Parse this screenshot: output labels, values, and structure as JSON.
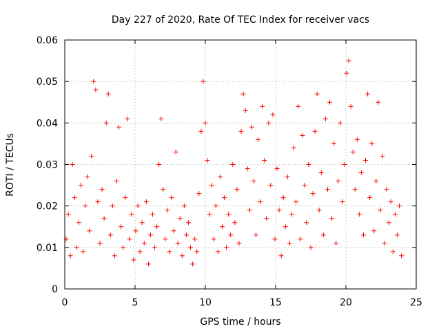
{
  "chart_data": {
    "type": "scatter",
    "title": "Day 227 of 2020, Rate Of TEC Index for receiver vacs",
    "xlabel": "GPS time / hours",
    "ylabel": "ROTI / TECUs",
    "xlim": [
      0,
      25
    ],
    "ylim": [
      0,
      0.06
    ],
    "xticks": [
      0,
      5,
      10,
      15,
      20,
      25
    ],
    "xtick_labels": [
      "0",
      "5",
      "10",
      "15",
      "20",
      "25"
    ],
    "yticks": [
      0,
      0.01,
      0.02,
      0.03,
      0.04,
      0.05,
      0.06
    ],
    "ytick_labels": [
      "0",
      "0.01",
      "0.02",
      "0.03",
      "0.04",
      "0.05",
      "0.06"
    ],
    "grid": true,
    "marker": "plus",
    "color": "#ff0000",
    "series": [
      {
        "points": [
          [
            0.1,
            0.012
          ],
          [
            0.25,
            0.018
          ],
          [
            0.4,
            0.008
          ],
          [
            0.55,
            0.03
          ],
          [
            0.7,
            0.022
          ],
          [
            0.85,
            0.01
          ],
          [
            1.0,
            0.016
          ],
          [
            1.15,
            0.025
          ],
          [
            1.3,
            0.009
          ],
          [
            1.45,
            0.02
          ],
          [
            1.6,
            0.027
          ],
          [
            1.75,
            0.014
          ],
          [
            1.9,
            0.032
          ],
          [
            2.05,
            0.05
          ],
          [
            2.2,
            0.048
          ],
          [
            2.35,
            0.021
          ],
          [
            2.5,
            0.011
          ],
          [
            2.65,
            0.024
          ],
          [
            2.8,
            0.017
          ],
          [
            2.95,
            0.04
          ],
          [
            3.1,
            0.047
          ],
          [
            3.25,
            0.013
          ],
          [
            3.4,
            0.02
          ],
          [
            3.55,
            0.008
          ],
          [
            3.7,
            0.026
          ],
          [
            3.85,
            0.039
          ],
          [
            4.0,
            0.015
          ],
          [
            4.15,
            0.01
          ],
          [
            4.3,
            0.022
          ],
          [
            4.45,
            0.041
          ],
          [
            4.6,
            0.012
          ],
          [
            4.75,
            0.018
          ],
          [
            4.9,
            0.007
          ],
          [
            5.05,
            0.014
          ],
          [
            5.2,
            0.02
          ],
          [
            5.35,
            0.009
          ],
          [
            5.5,
            0.016
          ],
          [
            5.65,
            0.011
          ],
          [
            5.8,
            0.021
          ],
          [
            5.95,
            0.006
          ],
          [
            6.1,
            0.013
          ],
          [
            6.25,
            0.018
          ],
          [
            6.4,
            0.01
          ],
          [
            6.55,
            0.015
          ],
          [
            6.7,
            0.03
          ],
          [
            6.85,
            0.041
          ],
          [
            7.0,
            0.024
          ],
          [
            7.15,
            0.012
          ],
          [
            7.3,
            0.019
          ],
          [
            7.45,
            0.009
          ],
          [
            7.6,
            0.022
          ],
          [
            7.75,
            0.014
          ],
          [
            7.9,
            0.033
          ],
          [
            8.05,
            0.011
          ],
          [
            8.2,
            0.017
          ],
          [
            8.35,
            0.008
          ],
          [
            8.5,
            0.02
          ],
          [
            8.65,
            0.013
          ],
          [
            8.8,
            0.016
          ],
          [
            8.95,
            0.01
          ],
          [
            9.1,
            0.006
          ],
          [
            9.25,
            0.012
          ],
          [
            9.4,
            0.009
          ],
          [
            9.55,
            0.023
          ],
          [
            9.7,
            0.038
          ],
          [
            9.85,
            0.05
          ],
          [
            10.0,
            0.04
          ],
          [
            10.15,
            0.031
          ],
          [
            10.3,
            0.018
          ],
          [
            10.45,
            0.025
          ],
          [
            10.6,
            0.012
          ],
          [
            10.75,
            0.02
          ],
          [
            10.9,
            0.009
          ],
          [
            11.05,
            0.027
          ],
          [
            11.2,
            0.015
          ],
          [
            11.35,
            0.022
          ],
          [
            11.5,
            0.01
          ],
          [
            11.65,
            0.018
          ],
          [
            11.8,
            0.013
          ],
          [
            11.95,
            0.03
          ],
          [
            12.1,
            0.016
          ],
          [
            12.25,
            0.024
          ],
          [
            12.4,
            0.011
          ],
          [
            12.55,
            0.038
          ],
          [
            12.7,
            0.047
          ],
          [
            12.85,
            0.043
          ],
          [
            13.0,
            0.029
          ],
          [
            13.15,
            0.019
          ],
          [
            13.3,
            0.039
          ],
          [
            13.45,
            0.026
          ],
          [
            13.6,
            0.013
          ],
          [
            13.75,
            0.036
          ],
          [
            13.9,
            0.021
          ],
          [
            14.05,
            0.044
          ],
          [
            14.2,
            0.031
          ],
          [
            14.35,
            0.017
          ],
          [
            14.5,
            0.04
          ],
          [
            14.65,
            0.025
          ],
          [
            14.8,
            0.042
          ],
          [
            14.95,
            0.012
          ],
          [
            15.1,
            0.029
          ],
          [
            15.25,
            0.019
          ],
          [
            15.4,
            0.008
          ],
          [
            15.55,
            0.022
          ],
          [
            15.7,
            0.015
          ],
          [
            15.85,
            0.027
          ],
          [
            16.0,
            0.011
          ],
          [
            16.15,
            0.018
          ],
          [
            16.3,
            0.034
          ],
          [
            16.45,
            0.021
          ],
          [
            16.6,
            0.044
          ],
          [
            16.75,
            0.012
          ],
          [
            16.9,
            0.037
          ],
          [
            17.05,
            0.025
          ],
          [
            17.2,
            0.016
          ],
          [
            17.35,
            0.03
          ],
          [
            17.5,
            0.01
          ],
          [
            17.65,
            0.023
          ],
          [
            17.8,
            0.038
          ],
          [
            17.95,
            0.047
          ],
          [
            18.1,
            0.019
          ],
          [
            18.25,
            0.028
          ],
          [
            18.4,
            0.013
          ],
          [
            18.55,
            0.041
          ],
          [
            18.7,
            0.024
          ],
          [
            18.85,
            0.045
          ],
          [
            19.0,
            0.017
          ],
          [
            19.15,
            0.035
          ],
          [
            19.3,
            0.011
          ],
          [
            19.45,
            0.026
          ],
          [
            19.6,
            0.04
          ],
          [
            19.75,
            0.021
          ],
          [
            19.9,
            0.03
          ],
          [
            20.05,
            0.052
          ],
          [
            20.2,
            0.055
          ],
          [
            20.35,
            0.044
          ],
          [
            20.5,
            0.033
          ],
          [
            20.65,
            0.024
          ],
          [
            20.8,
            0.036
          ],
          [
            20.95,
            0.018
          ],
          [
            21.1,
            0.028
          ],
          [
            21.25,
            0.013
          ],
          [
            21.4,
            0.031
          ],
          [
            21.55,
            0.047
          ],
          [
            21.7,
            0.022
          ],
          [
            21.85,
            0.035
          ],
          [
            22.0,
            0.014
          ],
          [
            22.15,
            0.026
          ],
          [
            22.3,
            0.045
          ],
          [
            22.45,
            0.019
          ],
          [
            22.6,
            0.032
          ],
          [
            22.75,
            0.011
          ],
          [
            22.9,
            0.024
          ],
          [
            23.05,
            0.016
          ],
          [
            23.2,
            0.021
          ],
          [
            23.35,
            0.009
          ],
          [
            23.5,
            0.018
          ],
          [
            23.65,
            0.013
          ],
          [
            23.8,
            0.02
          ],
          [
            23.95,
            0.008
          ]
        ]
      }
    ]
  }
}
